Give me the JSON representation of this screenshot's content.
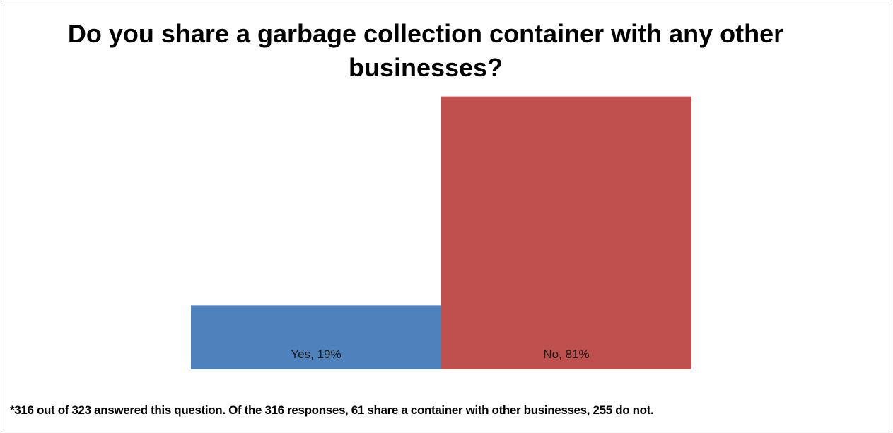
{
  "chart_data": {
    "type": "bar",
    "title": "Do you share a garbage collection container with any other businesses?",
    "categories": [
      "Yes",
      "No"
    ],
    "values": [
      19,
      81
    ],
    "data_labels": [
      "Yes, 19%",
      "No, 81%"
    ],
    "unit": "%",
    "colors": [
      "#4f81bd",
      "#c0504d"
    ],
    "xlabel": "",
    "ylabel": "",
    "ylim": [
      0,
      100
    ],
    "grid": false,
    "legend": "none",
    "footnote": "*316 out of 323 answered this question.  Of the 316 responses, 61 share a container with other businesses, 255 do not."
  }
}
